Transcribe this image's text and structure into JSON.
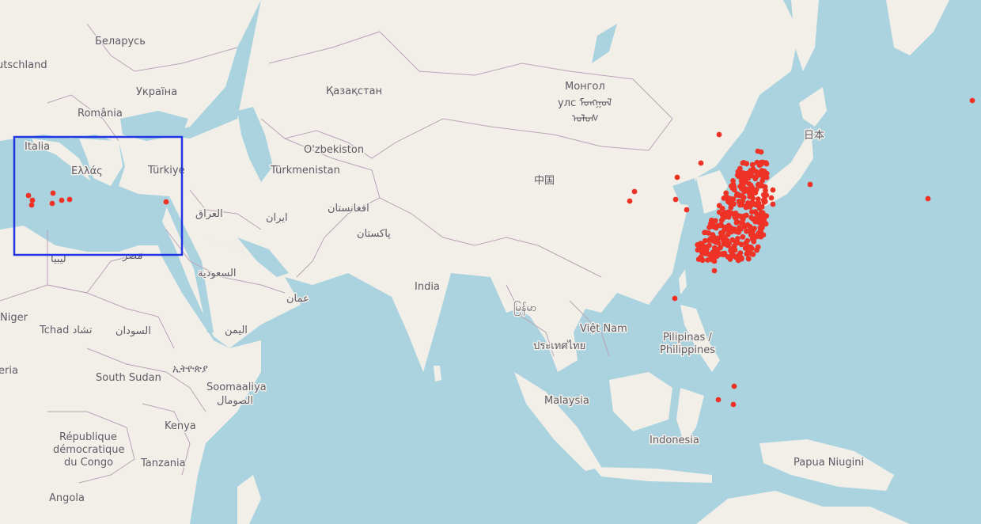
{
  "map": {
    "colors": {
      "land": "#f2efe9",
      "water": "#aad3df",
      "border": "#b8a3b5",
      "marker": "#ee3326",
      "selection": "#1f36e0"
    },
    "labels": [
      {
        "id": "belarus",
        "text": "Беларусь"
      },
      {
        "id": "deutschland",
        "text": "utschland"
      },
      {
        "id": "ukraina",
        "text": "Україна"
      },
      {
        "id": "romania",
        "text": "România"
      },
      {
        "id": "italia",
        "text": "Italia"
      },
      {
        "id": "ellas",
        "text": "Ελλάς"
      },
      {
        "id": "turkiye",
        "text": "Türkiye"
      },
      {
        "id": "kazakhstan",
        "text": "Қазақстан"
      },
      {
        "id": "mongol",
        "text": "Монгол"
      },
      {
        "id": "mongol2",
        "text": "улс ᠮᠣᠩᠭᠣᠯ"
      },
      {
        "id": "mongol3",
        "text": "ᠤᠯᠤᠰ"
      },
      {
        "id": "nihon",
        "text": "日本"
      },
      {
        "id": "uzbekiston",
        "text": "O'zbekiston"
      },
      {
        "id": "turkmenistan",
        "text": "Türkmenistan"
      },
      {
        "id": "china",
        "text": "中国"
      },
      {
        "id": "iraq",
        "text": "العراق"
      },
      {
        "id": "iran",
        "text": "ایران"
      },
      {
        "id": "afghanistan",
        "text": "افغانستان"
      },
      {
        "id": "pakistan",
        "text": "پاکستان"
      },
      {
        "id": "libya",
        "text": "ليبيا"
      },
      {
        "id": "misr",
        "text": "مصر"
      },
      {
        "id": "saudi",
        "text": "السعودية"
      },
      {
        "id": "oman",
        "text": "عمان"
      },
      {
        "id": "india",
        "text": "India"
      },
      {
        "id": "myanmar",
        "text": "မြန်မာ"
      },
      {
        "id": "vietnam",
        "text": "Việt Nam"
      },
      {
        "id": "thailand",
        "text": "ประเทศไทย"
      },
      {
        "id": "philippines1",
        "text": "Pilipinas /"
      },
      {
        "id": "philippines2",
        "text": "Philippines"
      },
      {
        "id": "niger",
        "text": "Niger"
      },
      {
        "id": "tchad",
        "text": "Tchad تشاد"
      },
      {
        "id": "sudan",
        "text": "السودان"
      },
      {
        "id": "yemen",
        "text": "اليمن"
      },
      {
        "id": "nigeria",
        "text": "eria"
      },
      {
        "id": "southsudan",
        "text": "South Sudan"
      },
      {
        "id": "ethiopia",
        "text": "ኢትዮጵያ"
      },
      {
        "id": "somalia1",
        "text": "Soomaaliya"
      },
      {
        "id": "somalia2",
        "text": "الصومال"
      },
      {
        "id": "malaysia",
        "text": "Malaysia"
      },
      {
        "id": "drc1",
        "text": "République"
      },
      {
        "id": "drc2",
        "text": "démocratique"
      },
      {
        "id": "drc3",
        "text": "du Congo"
      },
      {
        "id": "kenya",
        "text": "Kenya"
      },
      {
        "id": "tanzania",
        "text": "Tanzania"
      },
      {
        "id": "indonesia",
        "text": "Indonesia"
      },
      {
        "id": "papua",
        "text": "Papua Niugini"
      },
      {
        "id": "angola",
        "text": "Angola"
      }
    ]
  }
}
